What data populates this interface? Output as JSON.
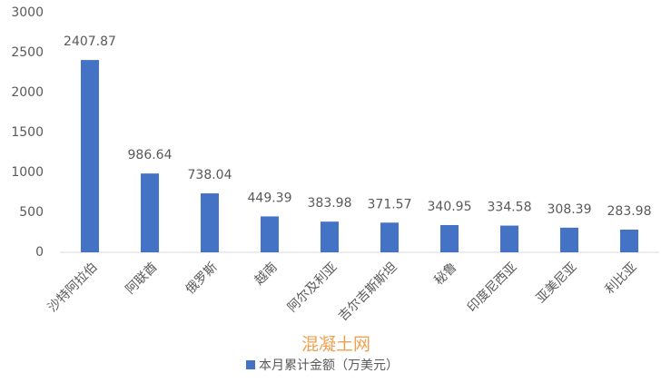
{
  "chart_data": {
    "type": "bar",
    "categories": [
      "沙特阿拉伯",
      "阿联酋",
      "俄罗斯",
      "越南",
      "阿尔及利亚",
      "吉尔吉斯斯坦",
      "秘鲁",
      "印度尼西亚",
      "亚美尼亚",
      "利比亚"
    ],
    "series": [
      {
        "name": "本月累计金额（万美元）",
        "color": "#4472c4",
        "values": [
          2407.87,
          986.64,
          738.04,
          449.39,
          383.98,
          371.57,
          340.95,
          334.58,
          308.39,
          283.98
        ]
      }
    ],
    "ylim": [
      0,
      3000
    ],
    "yticks": [
      0,
      500,
      1000,
      1500,
      2000,
      2500,
      3000
    ],
    "grid": false,
    "legend": "bottom",
    "watermark": "混凝土网"
  }
}
